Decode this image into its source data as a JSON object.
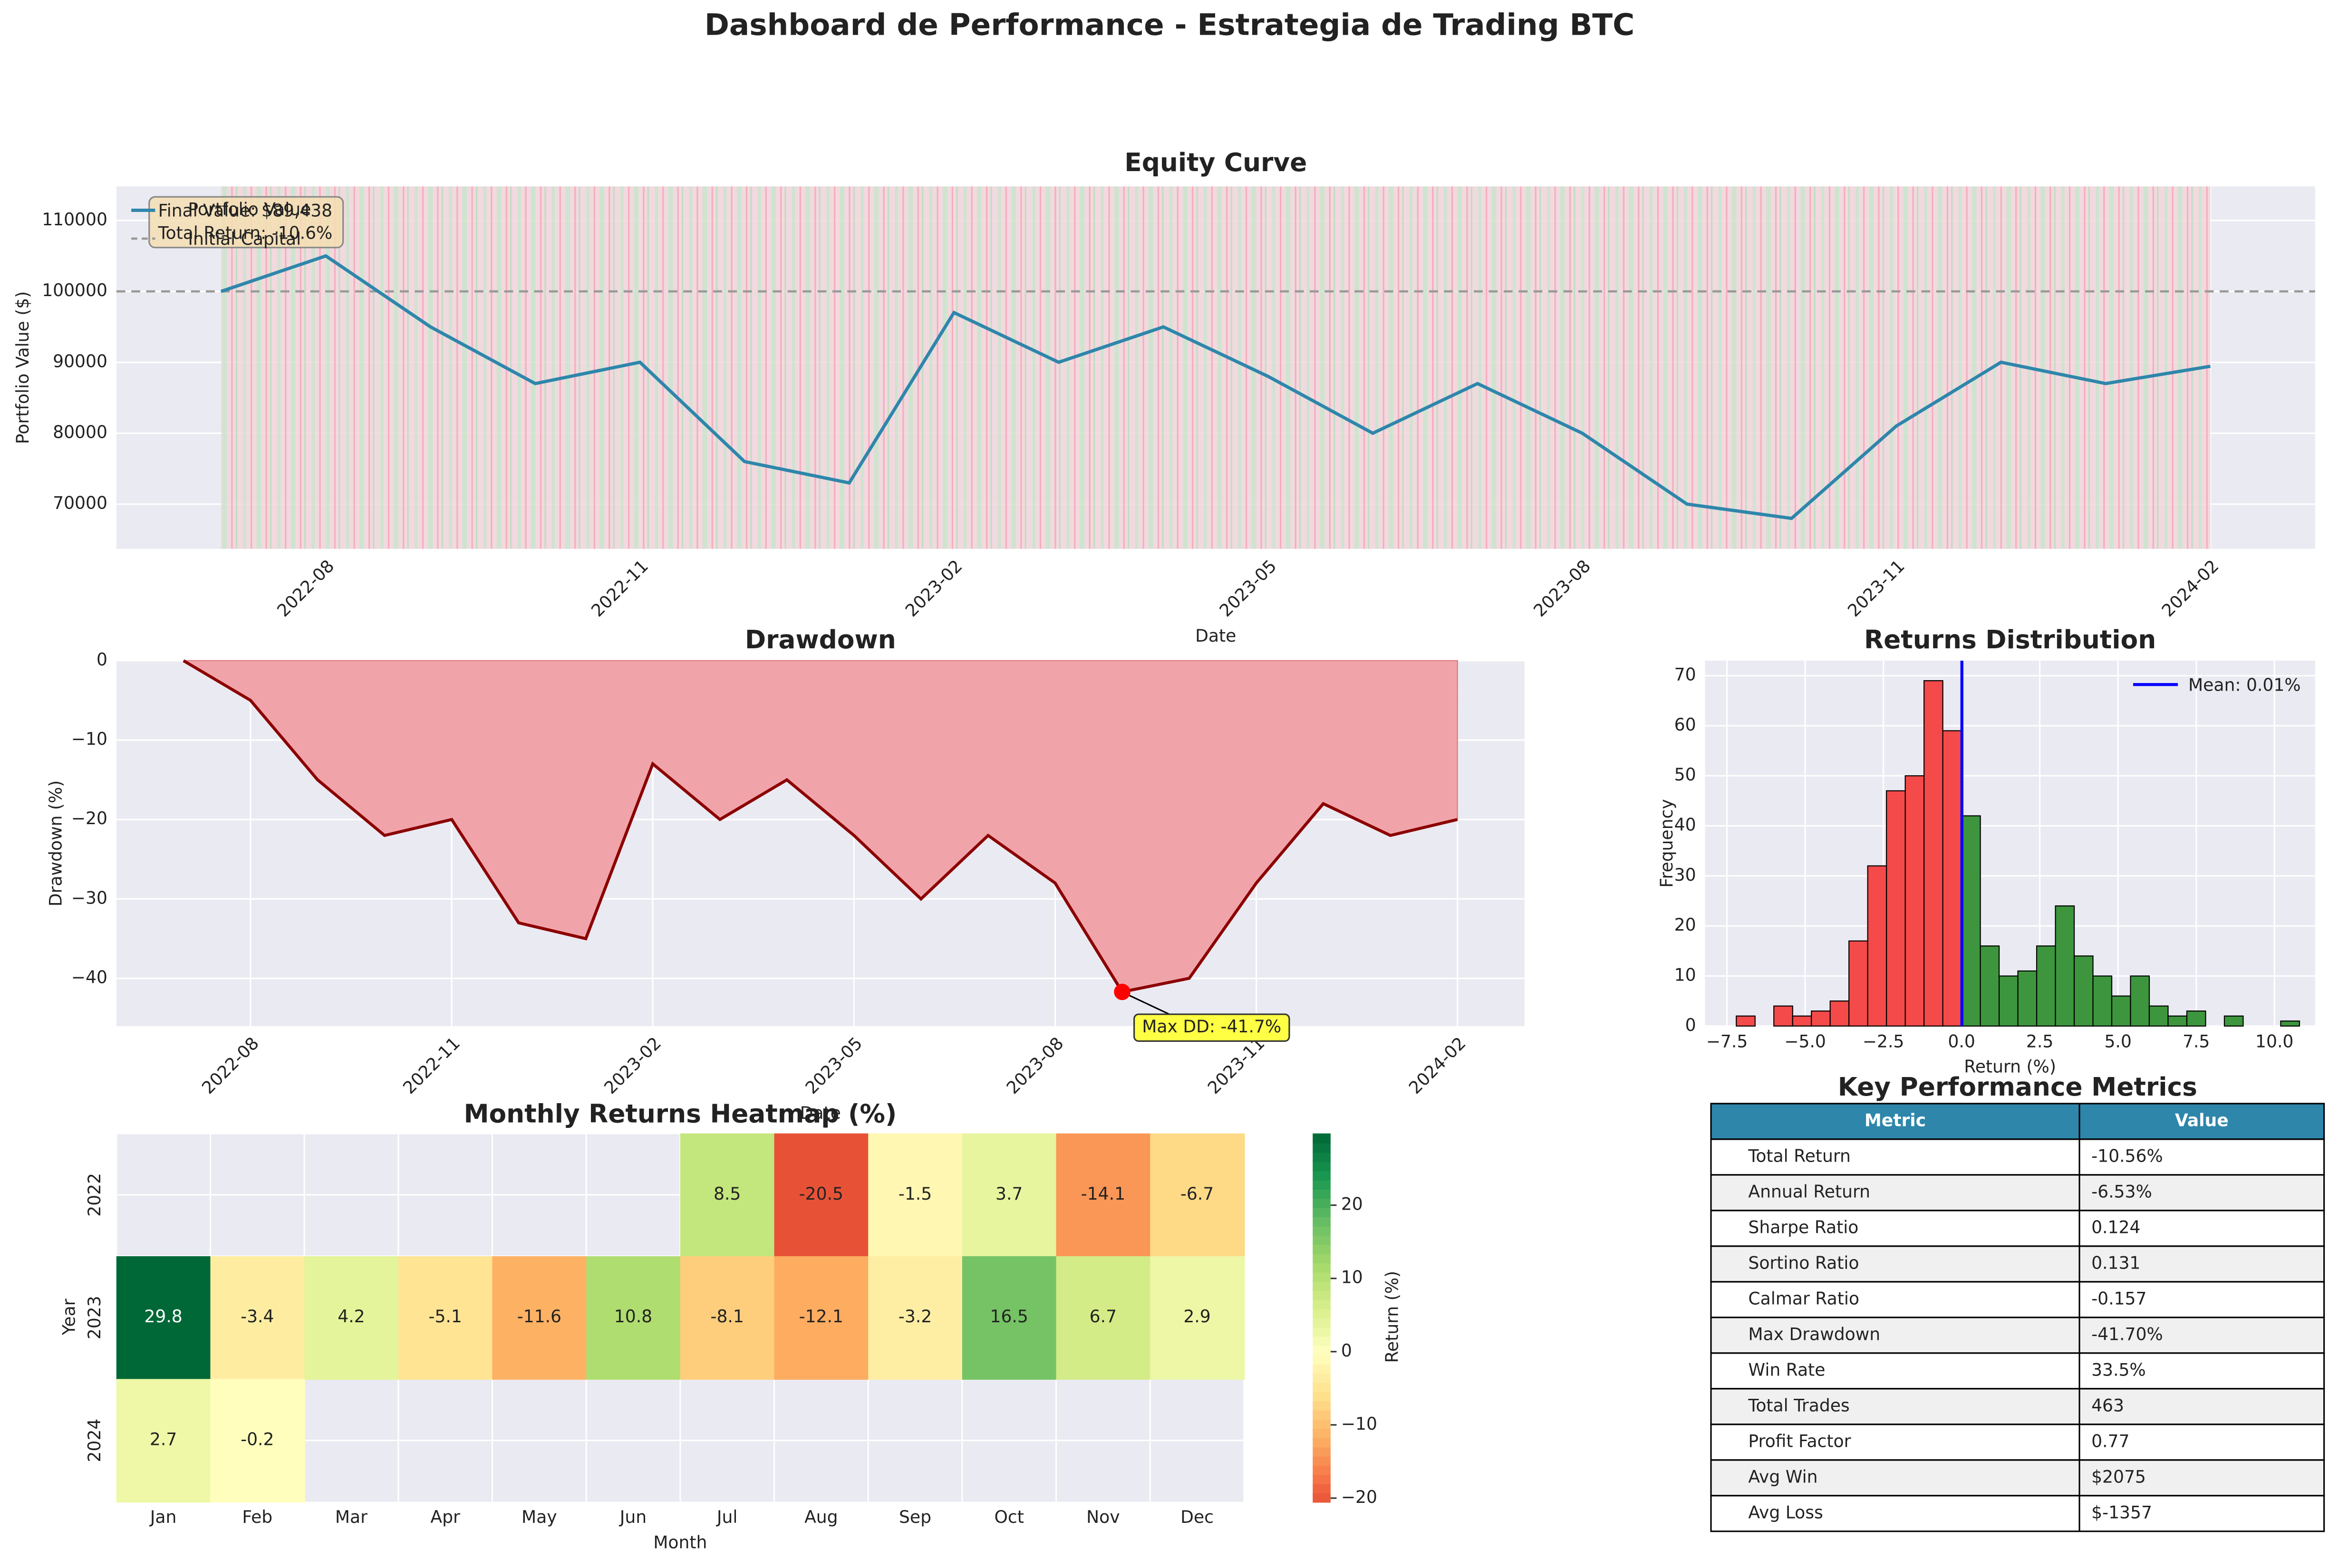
{
  "title": "Dashboard de Performance - Estrategia de Trading BTC",
  "chart_data": [
    {
      "type": "line",
      "title": "Equity Curve",
      "xlabel": "Date",
      "ylabel": "Portfolio Value ($)",
      "x": [
        "2022-07",
        "2022-08",
        "2022-09",
        "2022-10",
        "2022-11",
        "2022-12",
        "2023-01",
        "2023-02",
        "2023-03",
        "2023-04",
        "2023-05",
        "2023-06",
        "2023-07",
        "2023-08",
        "2023-09",
        "2023-10",
        "2023-11",
        "2023-12",
        "2024-01",
        "2024-02"
      ],
      "series": [
        {
          "name": "Portfolio Value",
          "color": "#2e86ab",
          "values": [
            100000,
            105000,
            95000,
            87000,
            90000,
            76000,
            73000,
            97000,
            90000,
            95000,
            88000,
            80000,
            87000,
            80000,
            70000,
            68000,
            81000,
            90000,
            87000,
            89438
          ]
        }
      ],
      "hline": {
        "name": "Initial Capital",
        "value": 100000,
        "color": "#999999"
      },
      "annotation": [
        "Final Value: $89,438",
        "Total Return: -10.6%"
      ],
      "xlim": [
        "2022-06",
        "2024-03"
      ],
      "xticks": [
        "2022-08",
        "2022-11",
        "2023-02",
        "2023-05",
        "2023-08",
        "2023-11",
        "2024-02"
      ],
      "ylim": [
        63700,
        114800
      ],
      "yticks": [
        70000,
        80000,
        90000,
        100000,
        110000
      ],
      "grid": true,
      "legend": "upper left"
    },
    {
      "type": "area",
      "title": "Drawdown",
      "xlabel": "Date",
      "ylabel": "Drawdown (%)",
      "x": [
        "2022-07",
        "2022-08",
        "2022-09",
        "2022-10",
        "2022-11",
        "2022-12",
        "2023-01",
        "2023-02",
        "2023-03",
        "2023-04",
        "2023-05",
        "2023-06",
        "2023-07",
        "2023-08",
        "2023-09",
        "2023-10",
        "2023-11",
        "2023-12",
        "2024-01",
        "2024-02"
      ],
      "series": [
        {
          "name": "Drawdown",
          "color": "#8b0000",
          "fill": "#f0a4aa",
          "values": [
            0,
            -5,
            -15,
            -22,
            -20,
            -33,
            -35,
            -13,
            -20,
            -15,
            -22,
            -30,
            -22,
            -28,
            -41.7,
            -40,
            -28,
            -18,
            -22,
            -20
          ]
        }
      ],
      "annotation": {
        "text": "Max DD: -41.7%",
        "x": "2023-09",
        "y": -41.7
      },
      "xlim": [
        "2022-06",
        "2024-03"
      ],
      "xticks": [
        "2022-08",
        "2022-11",
        "2023-02",
        "2023-05",
        "2023-08",
        "2023-11",
        "2024-02"
      ],
      "ylim": [
        -46,
        0
      ],
      "yticks": [
        {
          "value": -40,
          "label": "−40"
        },
        {
          "value": -30,
          "label": "−30"
        },
        {
          "value": -20,
          "label": "−20"
        },
        {
          "value": -10,
          "label": "−10"
        },
        0
      ],
      "grid": true
    },
    {
      "type": "histogram",
      "title": "Returns Distribution",
      "xlabel": "Return (%)",
      "ylabel": "Frequency",
      "bins": [
        -7.2,
        -6.6,
        -6.0,
        -5.4,
        -4.8,
        -4.2,
        -3.6,
        -3.0,
        -2.4,
        -1.8,
        -1.2,
        -0.6,
        0,
        0.6,
        1.2,
        1.8,
        2.4,
        3.0,
        3.6,
        4.2,
        4.8,
        5.4,
        6.0,
        6.6,
        7.2,
        7.8,
        8.4,
        9.0,
        9.6,
        10.2,
        10.8
      ],
      "counts": [
        2,
        0,
        4,
        2,
        3,
        5,
        17,
        32,
        47,
        50,
        69,
        59,
        42,
        16,
        10,
        11,
        16,
        24,
        14,
        10,
        6,
        10,
        4,
        2,
        3,
        0,
        2,
        0,
        0,
        1
      ],
      "color_negative": "#f44a4a",
      "color_positive": "#3d963d",
      "mean": 0.01,
      "mean_label": "Mean: 0.01%",
      "mean_color": "#0000ff",
      "legend": "upper right",
      "xlim": [
        -8.2,
        11.3
      ],
      "xticks": [
        {
          "value": -7.5,
          "label": "−7.5"
        },
        {
          "value": -5,
          "label": "−5.0"
        },
        {
          "value": -2.5,
          "label": "−2.5"
        },
        {
          "value": 0,
          "label": "0.0"
        },
        {
          "value": 2.5,
          "label": "2.5"
        },
        {
          "value": 5,
          "label": "5.0"
        },
        {
          "value": 7.5,
          "label": "7.5"
        },
        {
          "value": 10,
          "label": "10.0"
        }
      ],
      "ylim": [
        0,
        73
      ],
      "yticks": [
        0,
        10,
        20,
        30,
        40,
        50,
        60,
        70
      ],
      "grid": true
    },
    {
      "type": "heatmap",
      "title": "Monthly Returns Heatmap (%)",
      "xlabel": "Month",
      "ylabel": "Year",
      "categories": [
        "Jan",
        "Feb",
        "Mar",
        "Apr",
        "May",
        "Jun",
        "Jul",
        "Aug",
        "Sep",
        "Oct",
        "Nov",
        "Dec"
      ],
      "rows": [
        "2022",
        "2023",
        "2024"
      ],
      "values": [
        [
          null,
          null,
          null,
          null,
          null,
          null,
          8.5,
          -20.5,
          -1.5,
          3.7,
          -14.1,
          -6.7
        ],
        [
          29.8,
          -3.4,
          4.2,
          -5.1,
          -11.6,
          10.8,
          -8.1,
          -12.1,
          -3.2,
          16.5,
          6.7,
          2.9
        ],
        [
          2.7,
          -0.2,
          null,
          null,
          null,
          null,
          null,
          null,
          null,
          null,
          null,
          null
        ]
      ],
      "colormap": "RdYlGn",
      "center": 0,
      "clim": [
        -20.5,
        29.8
      ],
      "colorbar_label": "Return (%)",
      "colorbar_ticks": [
        {
          "value": -20,
          "label": "−20"
        },
        {
          "value": -10,
          "label": "−10"
        },
        0,
        10,
        20
      ]
    },
    {
      "type": "table",
      "title": "Key Performance Metrics",
      "header_color": "#2e86ab",
      "columns": [
        "Metric",
        "Value"
      ],
      "rows": [
        [
          "Total Return",
          "-10.56%"
        ],
        [
          "Annual Return",
          "-6.53%"
        ],
        [
          "Sharpe Ratio",
          "0.124"
        ],
        [
          "Sortino Ratio",
          "0.131"
        ],
        [
          "Calmar Ratio",
          "-0.157"
        ],
        [
          "Max Drawdown",
          "-41.70%"
        ],
        [
          "Win Rate",
          "33.5%"
        ],
        [
          "Total Trades",
          "463"
        ],
        [
          "Profit Factor",
          "0.77"
        ],
        [
          "Avg Win",
          "$2075"
        ],
        [
          "Avg Loss",
          "$-1357"
        ]
      ]
    }
  ]
}
